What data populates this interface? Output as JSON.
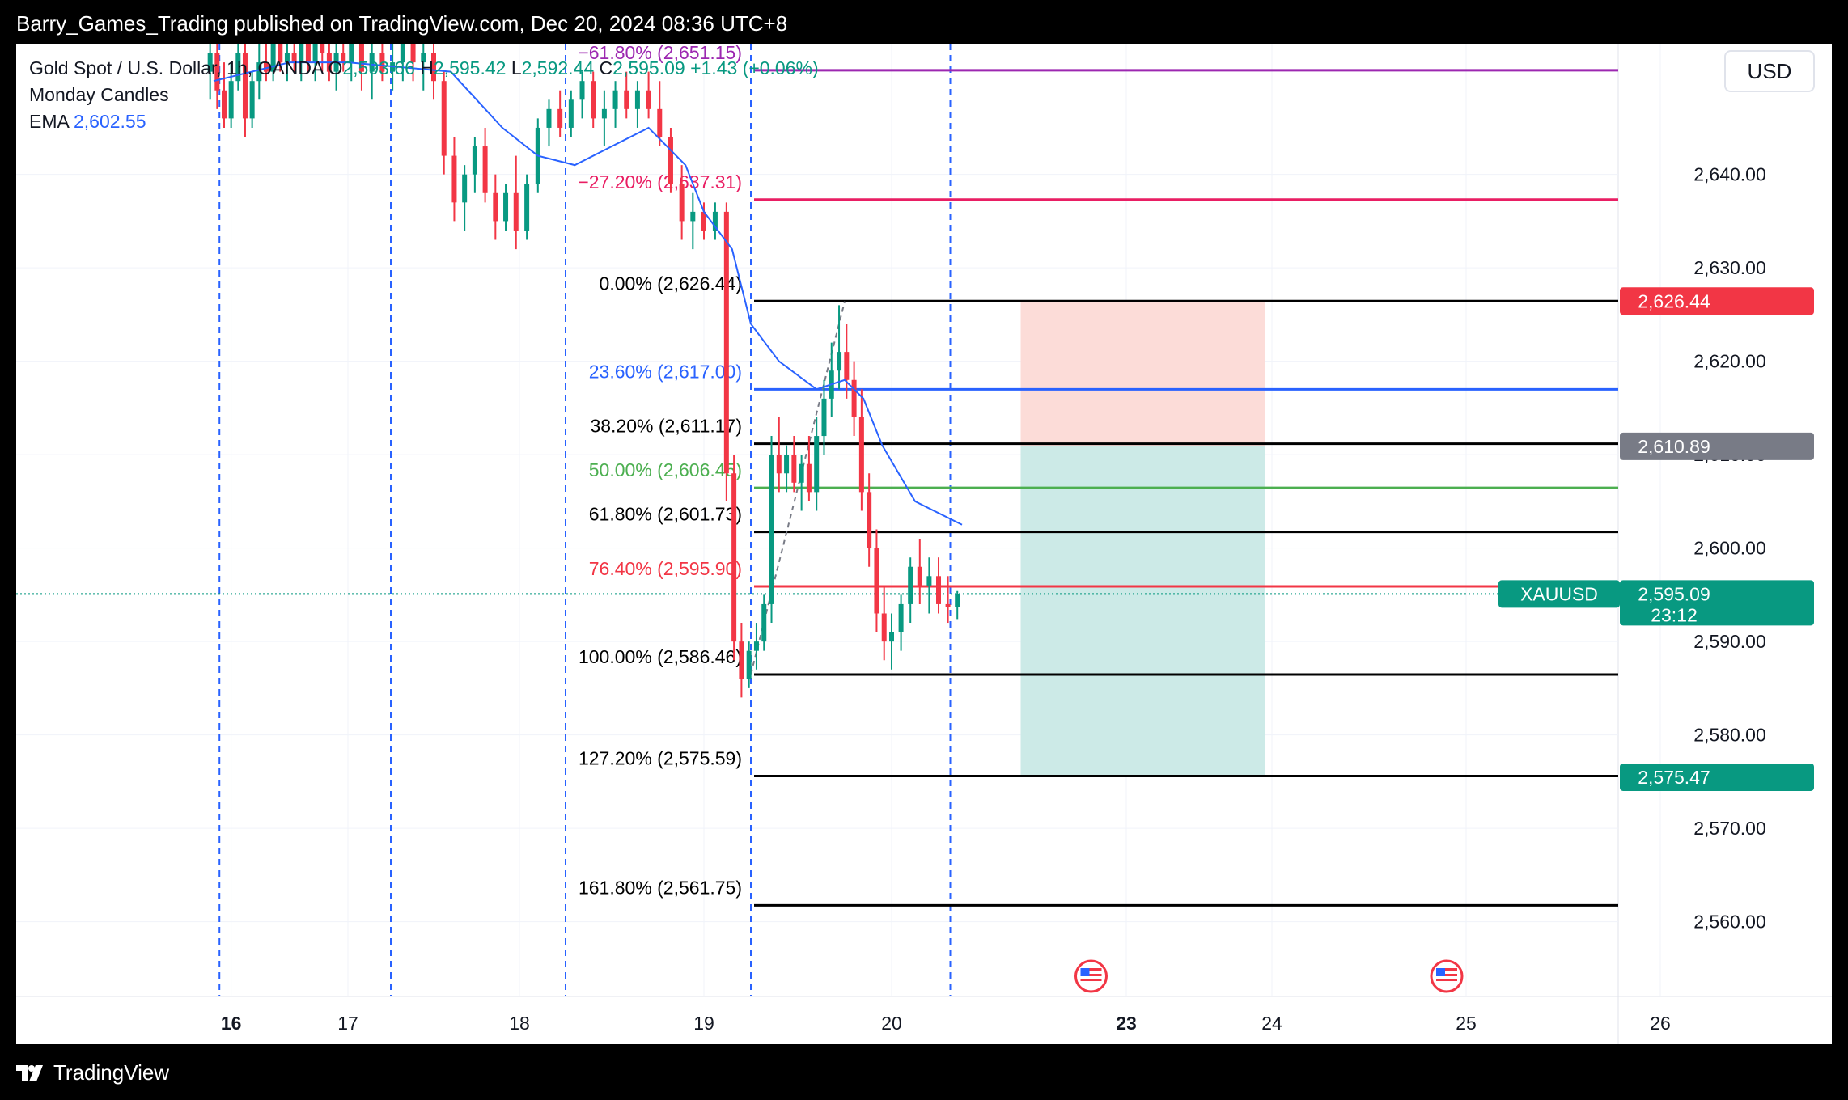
{
  "header": {
    "publisher_line": "Barry_Games_Trading published on TradingView.com, Dec 20, 2024 08:36 UTC+8"
  },
  "legend": {
    "symbol": "Gold Spot / U.S. Dollar, 1h, OANDA",
    "o_label": "O",
    "o_value": "2,593.66",
    "h_label": "H",
    "h_value": "2,595.42",
    "l_label": "L",
    "l_value": "2,592.44",
    "c_label": "C",
    "c_value": "2,595.09",
    "change": "+1.43 (+0.06%)",
    "indicator1": "Monday Candles",
    "ema_label": "EMA",
    "ema_value": "2,602.55"
  },
  "currency": "USD",
  "footer": {
    "brand": "TradingView"
  },
  "colors": {
    "up": "#089981",
    "down": "#f23645",
    "ema": "#2962ff",
    "purple": "#9c27b0",
    "magenta": "#e91e63",
    "blue": "#2962ff",
    "green": "#4caf50",
    "red": "#f23645",
    "black": "#000000",
    "stop_zone": "#fcdcd8",
    "target_zone": "#cceae7"
  },
  "chart_data": {
    "type": "candlestick",
    "symbol": "XAUUSD",
    "timeframe": "1h",
    "y_ticks": [
      "2,560.00",
      "2,570.00",
      "2,580.00",
      "2,590.00",
      "2,600.00",
      "2,610.00",
      "2,620.00",
      "2,630.00",
      "2,640.00"
    ],
    "y_tick_values": [
      2560,
      2570,
      2580,
      2590,
      2600,
      2610,
      2620,
      2630,
      2640
    ],
    "ylim": [
      2552,
      2654
    ],
    "x_ticks": [
      {
        "label": "16",
        "bold": true,
        "day": 16
      },
      {
        "label": "17",
        "bold": false,
        "day": 17
      },
      {
        "label": "18",
        "bold": false,
        "day": 18
      },
      {
        "label": "19",
        "bold": false,
        "day": 19
      },
      {
        "label": "20",
        "bold": false,
        "day": 20
      },
      {
        "label": "23",
        "bold": true,
        "day": 21
      },
      {
        "label": "24",
        "bold": false,
        "day": 22
      },
      {
        "label": "25",
        "bold": false,
        "day": 23
      },
      {
        "label": "26",
        "bold": false,
        "day": 24
      }
    ],
    "session_lines_day": [
      15.9,
      17.25,
      18.25,
      19.25,
      20.25
    ],
    "fib_levels": [
      {
        "label": "−61.80% (2,651.15)",
        "value": 2651.15,
        "color": "#9c27b0"
      },
      {
        "label": "−27.20% (2,637.31)",
        "value": 2637.31,
        "color": "#e91e63"
      },
      {
        "label": "0.00% (2,626.44)",
        "value": 2626.44,
        "color": "#000000"
      },
      {
        "label": "23.60% (2,617.00)",
        "value": 2617.0,
        "color": "#2962ff"
      },
      {
        "label": "38.20% (2,611.17)",
        "value": 2611.17,
        "color": "#000000"
      },
      {
        "label": "50.00% (2,606.45)",
        "value": 2606.45,
        "color": "#4caf50"
      },
      {
        "label": "61.80% (2,601.73)",
        "value": 2601.73,
        "color": "#000000"
      },
      {
        "label": "76.40% (2,595.90)",
        "value": 2595.9,
        "color": "#f23645"
      },
      {
        "label": "100.00% (2,586.46)",
        "value": 2586.46,
        "color": "#000000"
      },
      {
        "label": "127.20% (2,575.59)",
        "value": 2575.59,
        "color": "#000000"
      },
      {
        "label": "161.80% (2,561.75)",
        "value": 2561.75,
        "color": "#000000"
      }
    ],
    "position": {
      "entry": 2610.89,
      "stop": 2626.44,
      "target": 2575.47,
      "start_day": 20.55,
      "end_day": 21.95
    },
    "price_labels": [
      {
        "text": "2,626.44",
        "value": 2626.44,
        "bg": "#f23645"
      },
      {
        "text": "2,610.89",
        "value": 2610.89,
        "bg": "#787b86"
      },
      {
        "text": "2,575.47",
        "value": 2575.47,
        "bg": "#089981"
      }
    ],
    "last_price": {
      "symbol": "XAUUSD",
      "price": "2,595.09",
      "countdown": "23:12",
      "value": 2595.09
    },
    "event_markers_day": [
      20.85,
      22.9
    ],
    "ema": [
      [
        15.85,
        2650
      ],
      [
        16.5,
        2652
      ],
      [
        17.0,
        2652
      ],
      [
        17.6,
        2651
      ],
      [
        17.9,
        2645
      ],
      [
        18.1,
        2642
      ],
      [
        18.3,
        2641
      ],
      [
        18.5,
        2643
      ],
      [
        18.7,
        2645
      ],
      [
        18.9,
        2641
      ],
      [
        19.0,
        2636
      ],
      [
        19.15,
        2632
      ],
      [
        19.25,
        2624
      ],
      [
        19.4,
        2620
      ],
      [
        19.6,
        2617
      ],
      [
        19.75,
        2618
      ],
      [
        19.85,
        2616
      ],
      [
        19.95,
        2611
      ],
      [
        20.1,
        2605
      ],
      [
        20.3,
        2602.5
      ]
    ],
    "zigzag": [
      [
        19.25,
        2586.5
      ],
      [
        19.75,
        2626.4
      ]
    ],
    "candles": [
      [
        15.82,
        2651,
        2656,
        2648,
        2653
      ],
      [
        15.88,
        2653,
        2655,
        2647,
        2649
      ],
      [
        15.94,
        2649,
        2652,
        2645,
        2646
      ],
      [
        16.0,
        2646,
        2652,
        2645,
        2650
      ],
      [
        16.06,
        2650,
        2654,
        2649,
        2653
      ],
      [
        16.12,
        2653,
        2656,
        2644,
        2646
      ],
      [
        16.18,
        2646,
        2651,
        2645,
        2650
      ],
      [
        16.24,
        2650,
        2654,
        2648,
        2652
      ],
      [
        16.3,
        2652,
        2655,
        2650,
        2651
      ],
      [
        16.36,
        2651,
        2655,
        2650,
        2654
      ],
      [
        16.42,
        2654,
        2656,
        2651,
        2652
      ],
      [
        16.48,
        2652,
        2655,
        2650,
        2653
      ],
      [
        16.54,
        2653,
        2656,
        2651,
        2652
      ],
      [
        16.6,
        2652,
        2655,
        2650,
        2654
      ],
      [
        16.66,
        2654,
        2656,
        2651,
        2652
      ],
      [
        16.72,
        2652,
        2655,
        2650,
        2654
      ],
      [
        16.78,
        2654,
        2656,
        2651,
        2653
      ],
      [
        16.84,
        2653,
        2655,
        2650,
        2651
      ],
      [
        16.9,
        2651,
        2654,
        2649,
        2653
      ],
      [
        16.96,
        2653,
        2656,
        2651,
        2652
      ],
      [
        17.02,
        2652,
        2656,
        2650,
        2654
      ],
      [
        17.08,
        2654,
        2657,
        2649,
        2651
      ],
      [
        17.14,
        2651,
        2654,
        2648,
        2653
      ],
      [
        17.2,
        2653,
        2655,
        2650,
        2651
      ],
      [
        17.26,
        2651,
        2654,
        2649,
        2652
      ],
      [
        17.32,
        2652,
        2656,
        2650,
        2654
      ],
      [
        17.38,
        2654,
        2656,
        2650,
        2652
      ],
      [
        17.44,
        2652,
        2655,
        2649,
        2653
      ],
      [
        17.5,
        2653,
        2655,
        2648,
        2650
      ],
      [
        17.56,
        2650,
        2651,
        2640,
        2642
      ],
      [
        17.62,
        2642,
        2644,
        2635,
        2637
      ],
      [
        17.68,
        2637,
        2641,
        2634,
        2640
      ],
      [
        17.74,
        2640,
        2644,
        2638,
        2643
      ],
      [
        17.8,
        2643,
        2645,
        2637,
        2638
      ],
      [
        17.86,
        2638,
        2640,
        2633,
        2635
      ],
      [
        17.92,
        2635,
        2639,
        2634,
        2638
      ],
      [
        17.98,
        2638,
        2642,
        2632,
        2634
      ],
      [
        18.04,
        2634,
        2640,
        2633,
        2639
      ],
      [
        18.1,
        2639,
        2646,
        2638,
        2645
      ],
      [
        18.16,
        2645,
        2648,
        2643,
        2647
      ],
      [
        18.22,
        2647,
        2649,
        2644,
        2645
      ],
      [
        18.28,
        2645,
        2649,
        2644,
        2648
      ],
      [
        18.34,
        2648,
        2651,
        2646,
        2650
      ],
      [
        18.4,
        2650,
        2651,
        2645,
        2646
      ],
      [
        18.46,
        2646,
        2649,
        2643,
        2647
      ],
      [
        18.52,
        2647,
        2650,
        2645,
        2649
      ],
      [
        18.58,
        2649,
        2651,
        2646,
        2647
      ],
      [
        18.64,
        2647,
        2650,
        2645,
        2649
      ],
      [
        18.7,
        2649,
        2651,
        2646,
        2647
      ],
      [
        18.76,
        2647,
        2650,
        2643,
        2644
      ],
      [
        18.82,
        2644,
        2645,
        2638,
        2639
      ],
      [
        18.88,
        2639,
        2641,
        2633,
        2635
      ],
      [
        18.94,
        2635,
        2638,
        2632,
        2636
      ],
      [
        19.0,
        2636,
        2637,
        2633,
        2634
      ],
      [
        19.06,
        2634,
        2637,
        2633,
        2636
      ],
      [
        19.12,
        2636,
        2637,
        2605,
        2608
      ],
      [
        19.16,
        2608,
        2610,
        2588,
        2590
      ],
      [
        19.2,
        2590,
        2592,
        2584,
        2586
      ],
      [
        19.24,
        2586,
        2590,
        2585,
        2589
      ],
      [
        19.28,
        2589,
        2592,
        2587,
        2590
      ],
      [
        19.32,
        2590,
        2595,
        2589,
        2594
      ],
      [
        19.36,
        2594,
        2612,
        2592,
        2610
      ],
      [
        19.4,
        2610,
        2614,
        2606,
        2608
      ],
      [
        19.44,
        2608,
        2611,
        2606,
        2610
      ],
      [
        19.48,
        2610,
        2612,
        2606,
        2607
      ],
      [
        19.52,
        2607,
        2610,
        2604,
        2609
      ],
      [
        19.56,
        2609,
        2612,
        2605,
        2606
      ],
      [
        19.6,
        2606,
        2614,
        2604,
        2612
      ],
      [
        19.64,
        2612,
        2618,
        2610,
        2616
      ],
      [
        19.68,
        2616,
        2622,
        2614,
        2619
      ],
      [
        19.72,
        2619,
        2626,
        2617,
        2621
      ],
      [
        19.76,
        2621,
        2624,
        2616,
        2618
      ],
      [
        19.8,
        2618,
        2620,
        2612,
        2614
      ],
      [
        19.84,
        2614,
        2617,
        2604,
        2606
      ],
      [
        19.88,
        2606,
        2608,
        2598,
        2600
      ],
      [
        19.92,
        2600,
        2602,
        2591,
        2593
      ],
      [
        19.96,
        2593,
        2596,
        2588,
        2590
      ],
      [
        20.0,
        2590,
        2593,
        2587,
        2591
      ],
      [
        20.04,
        2591,
        2595,
        2589,
        2594
      ],
      [
        20.08,
        2594,
        2599,
        2592,
        2598
      ],
      [
        20.12,
        2598,
        2601,
        2594,
        2596
      ],
      [
        20.16,
        2596,
        2599,
        2593,
        2597
      ],
      [
        20.2,
        2597,
        2599,
        2593,
        2594
      ],
      [
        20.24,
        2594,
        2597,
        2592,
        2593.7
      ],
      [
        20.28,
        2593.7,
        2595.4,
        2592.4,
        2595.1
      ]
    ]
  }
}
